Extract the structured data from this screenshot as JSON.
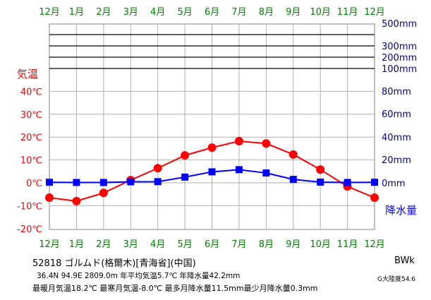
{
  "chart_data": {
    "type": "line",
    "x_labels": [
      "12月",
      "1月",
      "2月",
      "3月",
      "4月",
      "5月",
      "6月",
      "7月",
      "8月",
      "9月",
      "10月",
      "11月",
      "12月"
    ],
    "series": [
      {
        "values": [
          -6.5,
          -8.0,
          -4.4,
          1.2,
          6.4,
          12.0,
          15.4,
          18.2,
          17.2,
          12.4,
          5.8,
          -1.6,
          -6.5
        ],
        "color": "#ff0000",
        "marker": "circle"
      },
      {
        "values": [
          0.5,
          0.3,
          0.3,
          0.9,
          1.0,
          5.0,
          9.6,
          11.5,
          8.6,
          3.0,
          0.6,
          0.3,
          0.5
        ],
        "color": "#0000ff",
        "marker": "square"
      }
    ],
    "left_axis": {
      "label": "気温",
      "ticks": [
        "40℃",
        "30℃",
        "20℃",
        "10℃",
        "0℃",
        "-10℃",
        "-20℃"
      ],
      "range": [
        -20,
        40
      ],
      "color": "#ff0000"
    },
    "right_axis": {
      "label": "降水量",
      "ticks": [
        "500mm",
        "300mm",
        "200mm",
        "100mm",
        "80mm",
        "60mm",
        "40mm",
        "20mm",
        "0mm"
      ],
      "range": [
        0,
        500
      ],
      "color": "#00008b",
      "scale": "linear 0–100mm, compressed above 100mm"
    },
    "x_label_color": "#008000",
    "grid": true
  },
  "info": {
    "station": "52818 ゴルムド(格爾木)[青海省](中国)",
    "stats1": "36.4N  94.9E  2809.0m  年平均気温5.7℃  年降水量42.2mm",
    "stats2": "最暖月気温18.2℃ 最寒月気温-8.0℃ 最多月降水量11.5mm最少月降水量0.3mm",
    "koppen": "BWk",
    "continentality": "G大陸度54.6"
  }
}
